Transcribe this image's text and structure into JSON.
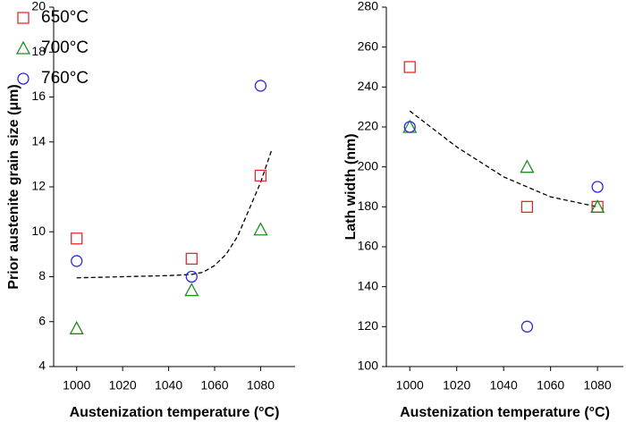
{
  "chart_data": [
    {
      "type": "scatter",
      "ylabel": "Prior austenite grain size (μm)",
      "xlabel": "Austenization temperature (°C)",
      "xlim": [
        990,
        1095
      ],
      "xticks": [
        1000,
        1020,
        1040,
        1060,
        1080
      ],
      "ylim": [
        4,
        20
      ],
      "yticks": [
        4,
        6,
        8,
        10,
        12,
        14,
        16,
        18,
        20
      ],
      "legend": "upper left",
      "series": [
        {
          "name": "650°C",
          "color": "#e8282d",
          "marker": "square",
          "x": [
            1000,
            1050,
            1080
          ],
          "values": [
            9.7,
            8.8,
            12.5
          ]
        },
        {
          "name": "700°C",
          "color": "#1e8c1e",
          "marker": "triangle",
          "x": [
            1000,
            1050,
            1080
          ],
          "values": [
            5.7,
            7.4,
            10.1
          ]
        },
        {
          "name": "760°C",
          "color": "#2a2ad8",
          "marker": "circle",
          "x": [
            1000,
            1050,
            1080
          ],
          "values": [
            8.7,
            8.0,
            16.5
          ]
        }
      ],
      "fit": {
        "color": "#000000",
        "x": [
          1000,
          1020,
          1040,
          1050,
          1055,
          1060,
          1065,
          1070,
          1075,
          1080,
          1085
        ],
        "values": [
          7.95,
          8.0,
          8.05,
          8.1,
          8.2,
          8.5,
          9.0,
          9.8,
          11.0,
          12.2,
          13.7
        ]
      }
    },
    {
      "type": "scatter",
      "ylabel": "Lath width (nm)",
      "xlabel": "Austenization temperature (°C)",
      "xlim": [
        990,
        1091
      ],
      "xticks": [
        1000,
        1020,
        1040,
        1060,
        1080
      ],
      "ylim": [
        100,
        280
      ],
      "yticks": [
        100,
        120,
        140,
        160,
        180,
        200,
        220,
        240,
        260,
        280
      ],
      "series": [
        {
          "color": "#e8282d",
          "marker": "square",
          "x": [
            1000,
            1050,
            1080
          ],
          "values": [
            250,
            180,
            180
          ]
        },
        {
          "color": "#1e8c1e",
          "marker": "triangle",
          "x": [
            1000,
            1050,
            1080
          ],
          "values": [
            220,
            200,
            180
          ]
        },
        {
          "color": "#2a2ad8",
          "marker": "circle",
          "x": [
            1000,
            1050,
            1080
          ],
          "values": [
            220,
            120,
            190
          ]
        }
      ],
      "fit": {
        "color": "#000000",
        "x": [
          1000,
          1020,
          1040,
          1060,
          1080
        ],
        "values": [
          228,
          210,
          195,
          185,
          180
        ]
      }
    }
  ]
}
